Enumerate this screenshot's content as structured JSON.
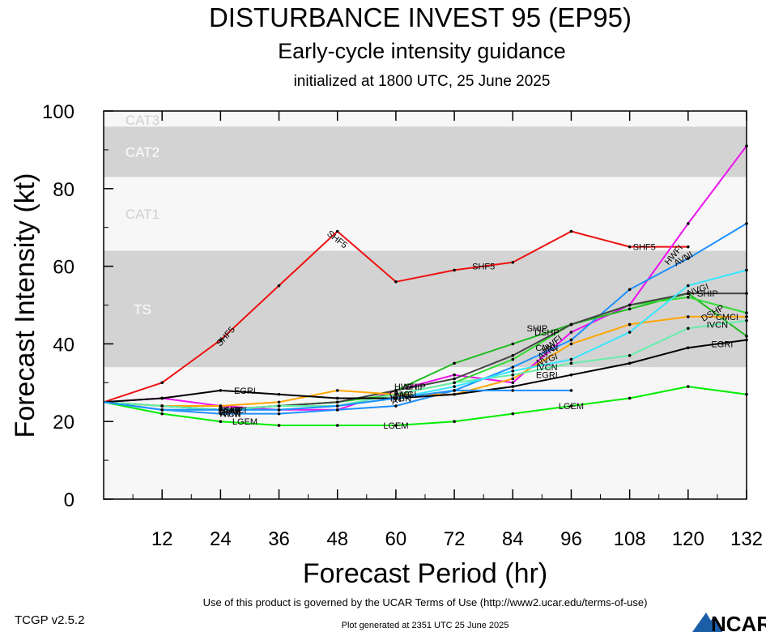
{
  "header": {
    "title": "DISTURBANCE INVEST 95 (EP95)",
    "subtitle": "Early-cycle intensity guidance",
    "initialized": "initialized at 1800 UTC, 25 June 2025"
  },
  "footer": {
    "terms": "Use of this product is governed by the UCAR Terms of Use (http://www2.ucar.edu/terms-of-use)",
    "generated": "Plot generated at 2351 UTC   25 June 2025",
    "version": "TCGP v2.5.2",
    "logo": "NCAR"
  },
  "colors": {
    "band_white": "#f7f7f7",
    "band_grey": "#d3d3d3",
    "SHF5": "#ee1111",
    "HWFI": "#ee11ee",
    "AVNI": "#1e90ff",
    "NVGI": "#22bb22",
    "DSHP": "#33dd33",
    "SHIP": "#444444",
    "CMCI": "#ffa500",
    "IVCN": "#66eeaa",
    "EGRI": "#000000",
    "LGEM": "#00ee00",
    "extra": "#33e6ff"
  },
  "chart_data": {
    "type": "line",
    "title": "DISTURBANCE INVEST 95 (EP95)",
    "xlabel": "Forecast Period (hr)",
    "ylabel": "Forecast Intensity (kt)",
    "xlim": [
      0,
      132
    ],
    "ylim": [
      0,
      100
    ],
    "xticks": [
      12,
      24,
      36,
      48,
      60,
      72,
      84,
      96,
      108,
      120,
      132
    ],
    "yticks": [
      0,
      20,
      40,
      60,
      80,
      100
    ],
    "grid": false,
    "bands": [
      {
        "label": "",
        "from": 0,
        "to": 34,
        "color": "band_white"
      },
      {
        "label": "TS",
        "from": 34,
        "to": 64,
        "color": "band_grey"
      },
      {
        "label": "CAT1",
        "from": 64,
        "to": 83,
        "color": "band_white"
      },
      {
        "label": "CAT2",
        "from": 83,
        "to": 96,
        "color": "band_grey"
      },
      {
        "label": "CAT3",
        "from": 96,
        "to": 100,
        "color": "band_white"
      }
    ],
    "series": [
      {
        "name": "SHF5",
        "color": "SHF5",
        "x": [
          0,
          12,
          24,
          36,
          48,
          60,
          72,
          84,
          96,
          108,
          120
        ],
        "values": [
          25,
          30,
          41,
          55,
          69,
          56,
          59,
          61,
          69,
          65,
          65
        ],
        "labels": [
          {
            "x": 25,
            "y": 42,
            "rot": -48
          },
          {
            "x": 48,
            "y": 67,
            "rot": 38
          },
          {
            "x": 78,
            "y": 60,
            "rot": 0
          },
          {
            "x": 111,
            "y": 65,
            "rot": 0
          }
        ]
      },
      {
        "name": "HWFI",
        "color": "HWFI",
        "x": [
          0,
          12,
          24,
          36,
          48,
          60,
          72,
          84,
          96,
          108,
          120,
          132
        ],
        "values": [
          25,
          26,
          24,
          23,
          23,
          28,
          32,
          30,
          43,
          50,
          71,
          91
        ],
        "labels": [
          {
            "x": 62,
            "y": 29,
            "rot": 0
          },
          {
            "x": 92,
            "y": 40,
            "rot": -38
          },
          {
            "x": 117,
            "y": 63,
            "rot": -50
          }
        ]
      },
      {
        "name": "AVNI",
        "color": "AVNI",
        "x": [
          0,
          12,
          24,
          36,
          48,
          60,
          72,
          84,
          96,
          108,
          120,
          132
        ],
        "values": [
          25,
          23,
          22,
          22,
          23,
          24,
          28,
          34,
          41,
          54,
          62,
          71
        ],
        "labels": [
          {
            "x": 26,
            "y": 22,
            "rot": 0
          },
          {
            "x": 61,
            "y": 26,
            "rot": -20
          },
          {
            "x": 91,
            "y": 38,
            "rot": -32
          },
          {
            "x": 119,
            "y": 62,
            "rot": -30
          }
        ]
      },
      {
        "name": "NVGI",
        "color": "NVGI",
        "x": [
          0,
          12,
          24,
          36,
          48,
          60,
          72,
          84,
          96,
          108,
          120,
          132
        ],
        "values": [
          25,
          24,
          23,
          24,
          25,
          28,
          35,
          40,
          45,
          49,
          53,
          42
        ],
        "labels": [
          {
            "x": 26,
            "y": 23,
            "rot": 0
          },
          {
            "x": 62,
            "y": 27,
            "rot": 0
          },
          {
            "x": 91,
            "y": 36,
            "rot": -20
          },
          {
            "x": 122,
            "y": 54,
            "rot": -20
          }
        ]
      },
      {
        "name": "DSHP",
        "color": "DSHP",
        "x": [
          0,
          12,
          24,
          36,
          48,
          60,
          72,
          84,
          96,
          108,
          120,
          132
        ],
        "values": [
          25,
          24,
          23,
          24,
          25,
          27,
          30,
          36,
          45,
          50,
          52,
          48
        ],
        "labels": [
          {
            "x": 26,
            "y": 23,
            "rot": 0
          },
          {
            "x": 91,
            "y": 43,
            "rot": 0
          },
          {
            "x": 125,
            "y": 48,
            "rot": -30
          }
        ]
      },
      {
        "name": "SHIP",
        "color": "SHIP",
        "x": [
          0,
          12,
          24,
          36,
          48,
          60,
          72,
          84,
          96,
          108,
          120,
          132
        ],
        "values": [
          25,
          24,
          23,
          24,
          25,
          28,
          31,
          37,
          45,
          50,
          53,
          53
        ],
        "labels": [
          {
            "x": 26,
            "y": 23,
            "rot": 0
          },
          {
            "x": 64,
            "y": 29,
            "rot": 0
          },
          {
            "x": 89,
            "y": 44,
            "rot": 0
          },
          {
            "x": 124,
            "y": 53,
            "rot": 0
          }
        ]
      },
      {
        "name": "CMCI",
        "color": "CMCI",
        "x": [
          0,
          12,
          24,
          36,
          48,
          60,
          72,
          84,
          96,
          108,
          120,
          132
        ],
        "values": [
          25,
          24,
          24,
          25,
          28,
          27,
          27,
          31,
          40,
          45,
          47,
          47
        ],
        "labels": [
          {
            "x": 27,
            "y": 23,
            "rot": 0
          },
          {
            "x": 61,
            "y": 27,
            "rot": 0
          },
          {
            "x": 91,
            "y": 39,
            "rot": 0
          },
          {
            "x": 128,
            "y": 47,
            "rot": 0
          }
        ]
      },
      {
        "name": "IVCN",
        "color": "IVCN",
        "x": [
          0,
          12,
          24,
          36,
          48,
          60,
          72,
          84,
          96,
          108,
          120,
          132
        ],
        "values": [
          25,
          24,
          23,
          24,
          24,
          27,
          30,
          32,
          35,
          37,
          44,
          46
        ],
        "labels": [
          {
            "x": 26,
            "y": 22,
            "rot": 0
          },
          {
            "x": 61,
            "y": 26,
            "rot": 0
          },
          {
            "x": 91,
            "y": 34,
            "rot": 0
          },
          {
            "x": 126,
            "y": 45,
            "rot": 0
          }
        ]
      },
      {
        "name": "EGRI",
        "color": "EGRI",
        "x": [
          0,
          12,
          24,
          36,
          48,
          60,
          72,
          84,
          96,
          108,
          120,
          132
        ],
        "values": [
          25,
          26,
          28,
          27,
          26,
          26,
          27,
          29,
          32,
          35,
          39,
          41
        ],
        "labels": [
          {
            "x": 29,
            "y": 28,
            "rot": 0
          },
          {
            "x": 91,
            "y": 32,
            "rot": 0
          },
          {
            "x": 127,
            "y": 40,
            "rot": 0
          }
        ]
      },
      {
        "name": "LGEM",
        "color": "LGEM",
        "x": [
          0,
          12,
          24,
          36,
          48,
          60,
          72,
          84,
          96,
          108,
          120,
          132
        ],
        "values": [
          25,
          22,
          20,
          19,
          19,
          19,
          20,
          22,
          24,
          26,
          29,
          27
        ],
        "labels": [
          {
            "x": 29,
            "y": 20,
            "rot": 0
          },
          {
            "x": 60,
            "y": 19,
            "rot": 0
          },
          {
            "x": 96,
            "y": 24,
            "rot": 0
          }
        ]
      },
      {
        "name": "",
        "color": "extra",
        "x": [
          0,
          12,
          24,
          36,
          48,
          60,
          72,
          84,
          96,
          108,
          120,
          132
        ],
        "values": [
          25,
          23,
          23,
          23,
          24,
          26,
          29,
          33,
          36,
          43,
          55,
          59
        ],
        "labels": []
      },
      {
        "name": "",
        "color": "AVNI",
        "x": [
          0,
          12,
          24,
          36,
          48,
          60,
          72,
          84,
          96
        ],
        "values": [
          25,
          23,
          23,
          23,
          24,
          26,
          28,
          28,
          28
        ],
        "labels": []
      }
    ]
  }
}
